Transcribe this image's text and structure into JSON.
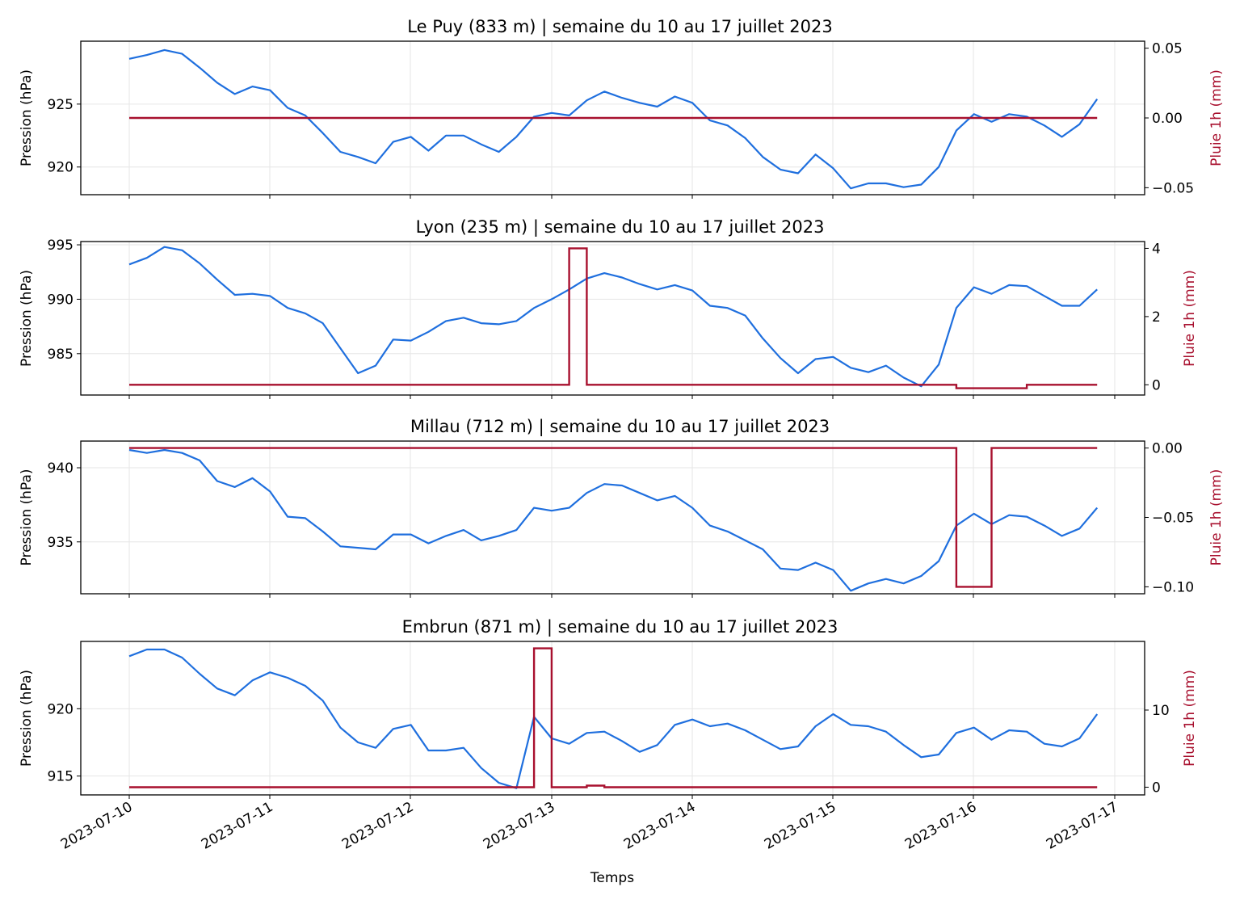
{
  "figure": {
    "xlabel": "Temps",
    "colors": {
      "pressure": "#1f6fde",
      "rain": "#a8102e",
      "grid": "#e6e6e6",
      "axis": "#000000"
    }
  },
  "chart_data": [
    {
      "type": "line",
      "title": "Le Puy (833 m)  |  semaine du 10 au 17 juillet 2023",
      "ylabel_left": "Pression (hPa)",
      "ylabel_right": "Pluie 1h (mm)",
      "x_ticks": [
        "2023-07-10",
        "2023-07-11",
        "2023-07-12",
        "2023-07-13",
        "2023-07-14",
        "2023-07-15",
        "2023-07-16",
        "2023-07-17"
      ],
      "ylim_left": [
        917.8,
        930.0
      ],
      "yticks_left": [
        920,
        925
      ],
      "ylim_right": [
        -0.055,
        0.055
      ],
      "yticks_right": [
        {
          "v": 0.05,
          "label": "0.05"
        },
        {
          "v": 0.0,
          "label": "0.00"
        },
        {
          "v": -0.05,
          "label": "−0.05"
        }
      ],
      "grid": true,
      "series": [
        {
          "axis": "left",
          "step": false,
          "color_key": "pressure",
          "values": [
            928.6,
            928.9,
            929.3,
            929.0,
            927.9,
            926.7,
            925.8,
            926.4,
            926.1,
            924.7,
            924.1,
            922.7,
            921.2,
            920.8,
            920.3,
            922.0,
            922.4,
            921.3,
            922.5,
            922.5,
            921.8,
            921.2,
            922.4,
            924.0,
            924.3,
            924.1,
            925.3,
            926.0,
            925.5,
            925.1,
            924.8,
            925.6,
            925.1,
            923.7,
            923.3,
            922.3,
            920.8,
            919.8,
            919.5,
            921.0,
            919.9,
            918.3,
            918.7,
            918.7,
            918.4,
            918.6,
            920.0,
            922.9,
            924.2,
            923.6,
            924.2,
            924.0,
            923.3,
            922.4,
            923.4,
            925.4
          ]
        },
        {
          "axis": "right",
          "step": true,
          "color_key": "rain",
          "values": [
            0,
            0,
            0,
            0,
            0,
            0,
            0,
            0,
            0,
            0,
            0,
            0,
            0,
            0,
            0,
            0,
            0,
            0,
            0,
            0,
            0,
            0,
            0,
            0,
            0,
            0,
            0,
            0,
            0,
            0,
            0,
            0,
            0,
            0,
            0,
            0,
            0,
            0,
            0,
            0,
            0,
            0,
            0,
            0,
            0,
            0,
            0,
            0,
            0,
            0,
            0,
            0,
            0,
            0,
            0,
            0
          ]
        }
      ]
    },
    {
      "type": "line",
      "title": "Lyon (235 m)  |  semaine du 10 au 17 juillet 2023",
      "ylabel_left": "Pression (hPa)",
      "ylabel_right": "Pluie 1h (mm)",
      "x_ticks": [
        "2023-07-10",
        "2023-07-11",
        "2023-07-12",
        "2023-07-13",
        "2023-07-14",
        "2023-07-15",
        "2023-07-16",
        "2023-07-17"
      ],
      "ylim_left": [
        981.2,
        995.3
      ],
      "yticks_left": [
        985,
        990,
        995
      ],
      "ylim_right": [
        -0.3,
        4.2
      ],
      "yticks_right": [
        {
          "v": 0,
          "label": "0"
        },
        {
          "v": 2,
          "label": "2"
        },
        {
          "v": 4,
          "label": "4"
        }
      ],
      "grid": true,
      "series": [
        {
          "axis": "left",
          "step": false,
          "color_key": "pressure",
          "values": [
            993.2,
            993.8,
            994.8,
            994.5,
            993.3,
            991.8,
            990.4,
            990.5,
            990.3,
            989.2,
            988.7,
            987.8,
            985.5,
            983.2,
            983.9,
            986.3,
            986.2,
            987.0,
            988.0,
            988.3,
            987.8,
            987.7,
            988.0,
            989.2,
            990.0,
            990.9,
            991.9,
            992.4,
            992.0,
            991.4,
            990.9,
            991.3,
            990.8,
            989.4,
            989.2,
            988.5,
            986.4,
            984.6,
            983.2,
            984.5,
            984.7,
            983.7,
            983.3,
            983.9,
            982.8,
            982.0,
            984.0,
            989.2,
            991.1,
            990.5,
            991.3,
            991.2,
            990.3,
            989.4,
            989.4,
            990.9
          ]
        },
        {
          "axis": "right",
          "step": true,
          "color_key": "rain",
          "values": [
            0,
            0,
            0,
            0,
            0,
            0,
            0,
            0,
            0,
            0,
            0,
            0,
            0,
            0,
            0,
            0,
            0,
            0,
            0,
            0,
            0,
            0,
            0,
            0,
            0,
            4,
            0,
            0,
            0,
            0,
            0,
            0,
            0,
            0,
            0,
            0,
            0,
            0,
            0,
            0,
            0,
            0,
            0,
            0,
            0,
            0,
            0,
            -0.1,
            -0.1,
            -0.1,
            -0.1,
            0,
            0,
            0,
            0,
            0
          ]
        }
      ]
    },
    {
      "type": "line",
      "title": "Millau (712 m)  |  semaine du 10 au 17 juillet 2023",
      "ylabel_left": "Pression (hPa)",
      "ylabel_right": "Pluie 1h (mm)",
      "x_ticks": [
        "2023-07-10",
        "2023-07-11",
        "2023-07-12",
        "2023-07-13",
        "2023-07-14",
        "2023-07-15",
        "2023-07-16",
        "2023-07-17"
      ],
      "ylim_left": [
        931.5,
        941.8
      ],
      "yticks_left": [
        935,
        940
      ],
      "ylim_right": [
        -0.105,
        0.005
      ],
      "yticks_right": [
        {
          "v": 0.0,
          "label": "0.00"
        },
        {
          "v": -0.05,
          "label": "−0.05"
        },
        {
          "v": -0.1,
          "label": "−0.10"
        }
      ],
      "grid": true,
      "series": [
        {
          "axis": "left",
          "step": false,
          "color_key": "pressure",
          "values": [
            941.2,
            941.0,
            941.2,
            941.0,
            940.5,
            939.1,
            938.7,
            939.3,
            938.4,
            936.7,
            936.6,
            935.7,
            934.7,
            934.6,
            934.5,
            935.5,
            935.5,
            934.9,
            935.4,
            935.8,
            935.1,
            935.4,
            935.8,
            937.3,
            937.1,
            937.3,
            938.3,
            938.9,
            938.8,
            938.3,
            937.8,
            938.1,
            937.3,
            936.1,
            935.7,
            935.1,
            934.5,
            933.2,
            933.1,
            933.6,
            933.1,
            931.7,
            932.2,
            932.5,
            932.2,
            932.7,
            933.7,
            936.1,
            936.9,
            936.2,
            936.8,
            936.7,
            936.1,
            935.4,
            935.9,
            937.3
          ]
        },
        {
          "axis": "right",
          "step": true,
          "color_key": "rain",
          "values": [
            0,
            0,
            0,
            0,
            0,
            0,
            0,
            0,
            0,
            0,
            0,
            0,
            0,
            0,
            0,
            0,
            0,
            0,
            0,
            0,
            0,
            0,
            0,
            0,
            0,
            0,
            0,
            0,
            0,
            0,
            0,
            0,
            0,
            0,
            0,
            0,
            0,
            0,
            0,
            0,
            0,
            0,
            0,
            0,
            0,
            0,
            0,
            -0.1,
            -0.1,
            0,
            0,
            0,
            0,
            0,
            0,
            0
          ]
        }
      ]
    },
    {
      "type": "line",
      "title": "Embrun (871 m)  |  semaine du 10 au 17 juillet 2023",
      "ylabel_left": "Pression (hPa)",
      "ylabel_right": "Pluie 1h (mm)",
      "x_ticks": [
        "2023-07-10",
        "2023-07-11",
        "2023-07-12",
        "2023-07-13",
        "2023-07-14",
        "2023-07-15",
        "2023-07-16",
        "2023-07-17"
      ],
      "ylim_left": [
        913.6,
        925.0
      ],
      "yticks_left": [
        915,
        920
      ],
      "ylim_right": [
        -1.0,
        18.9
      ],
      "yticks_right": [
        {
          "v": 0,
          "label": "0"
        },
        {
          "v": 10,
          "label": "10"
        }
      ],
      "grid": true,
      "series": [
        {
          "axis": "left",
          "step": false,
          "color_key": "pressure",
          "values": [
            923.9,
            924.4,
            924.4,
            923.8,
            922.6,
            921.5,
            921.0,
            922.1,
            922.7,
            922.3,
            921.7,
            920.6,
            918.6,
            917.5,
            917.1,
            918.5,
            918.8,
            916.9,
            916.9,
            917.1,
            915.6,
            914.5,
            914.1,
            919.4,
            917.8,
            917.4,
            918.2,
            918.3,
            917.6,
            916.8,
            917.3,
            918.8,
            919.2,
            918.7,
            918.9,
            918.4,
            917.7,
            917.0,
            917.2,
            918.7,
            919.6,
            918.8,
            918.7,
            918.3,
            917.3,
            916.4,
            916.6,
            918.2,
            918.6,
            917.7,
            918.4,
            918.3,
            917.4,
            917.2,
            917.8,
            919.6
          ]
        },
        {
          "axis": "right",
          "step": true,
          "color_key": "rain",
          "values": [
            0,
            0,
            0,
            0,
            0,
            0,
            0,
            0,
            0,
            0,
            0,
            0,
            0,
            0,
            0,
            0,
            0,
            0,
            0,
            0,
            0,
            0,
            0,
            18,
            0,
            0,
            0.2,
            0,
            0,
            0,
            0,
            0,
            0,
            0,
            0,
            0,
            0,
            0,
            0,
            0,
            0,
            0,
            0,
            0,
            0,
            0,
            0,
            0,
            0,
            0,
            0,
            0,
            0,
            0,
            0,
            0
          ]
        }
      ]
    }
  ]
}
